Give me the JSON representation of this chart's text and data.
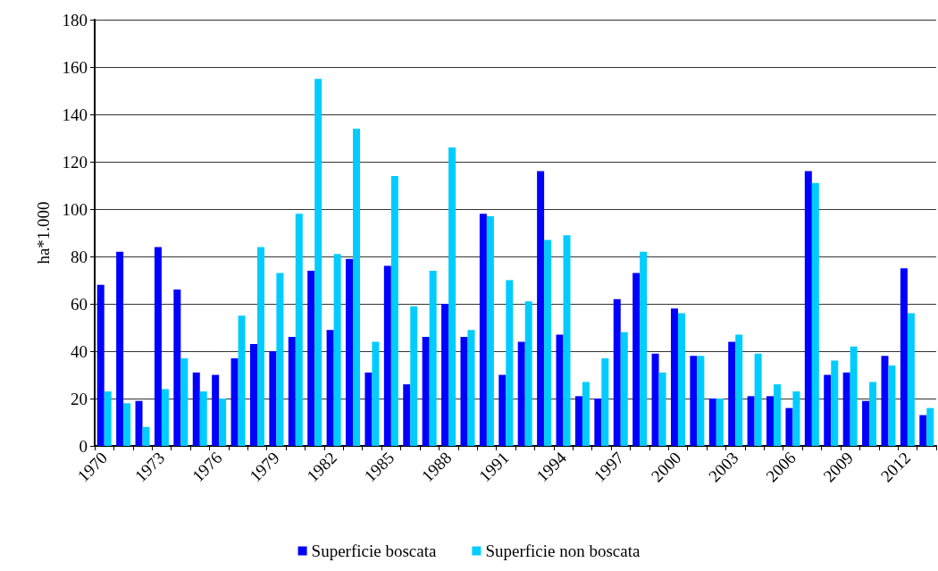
{
  "chart_data": {
    "type": "bar",
    "ylabel": "ha*1.000",
    "categories": [
      "1970",
      null,
      null,
      "1973",
      null,
      null,
      "1976",
      null,
      null,
      "1979",
      null,
      null,
      "1982",
      null,
      null,
      "1985",
      null,
      null,
      "1988",
      null,
      null,
      "1991",
      null,
      null,
      "1994",
      null,
      null,
      "1997",
      null,
      null,
      "2000",
      null,
      null,
      "2003",
      null,
      null,
      "2006",
      null,
      null,
      "2009",
      null,
      null,
      "2012",
      null
    ],
    "series": [
      {
        "name": "Superficie boscata",
        "color": "#0000ff",
        "values": [
          68,
          82,
          19,
          84,
          66,
          31,
          30,
          37,
          43,
          40,
          46,
          74,
          49,
          79,
          31,
          76,
          26,
          46,
          60,
          46,
          98,
          30,
          44,
          116,
          47,
          21,
          20,
          62,
          73,
          39,
          58,
          38,
          20,
          44,
          21,
          21,
          16,
          116,
          30,
          31,
          19,
          38,
          75,
          13
        ]
      },
      {
        "name": "Superficie non boscata",
        "color": "#00ccff",
        "values": [
          23,
          18,
          8,
          24,
          37,
          23,
          20,
          55,
          84,
          73,
          98,
          155,
          81,
          134,
          44,
          114,
          59,
          74,
          126,
          49,
          97,
          70,
          61,
          87,
          89,
          27,
          37,
          48,
          82,
          31,
          56,
          38,
          20,
          47,
          39,
          26,
          23,
          111,
          36,
          42,
          27,
          34,
          56,
          16
        ]
      }
    ],
    "ylim": [
      0,
      180
    ],
    "yticks": [
      0,
      20,
      40,
      60,
      80,
      100,
      120,
      140,
      160,
      180
    ],
    "grid": "y",
    "legend": "bottom"
  }
}
